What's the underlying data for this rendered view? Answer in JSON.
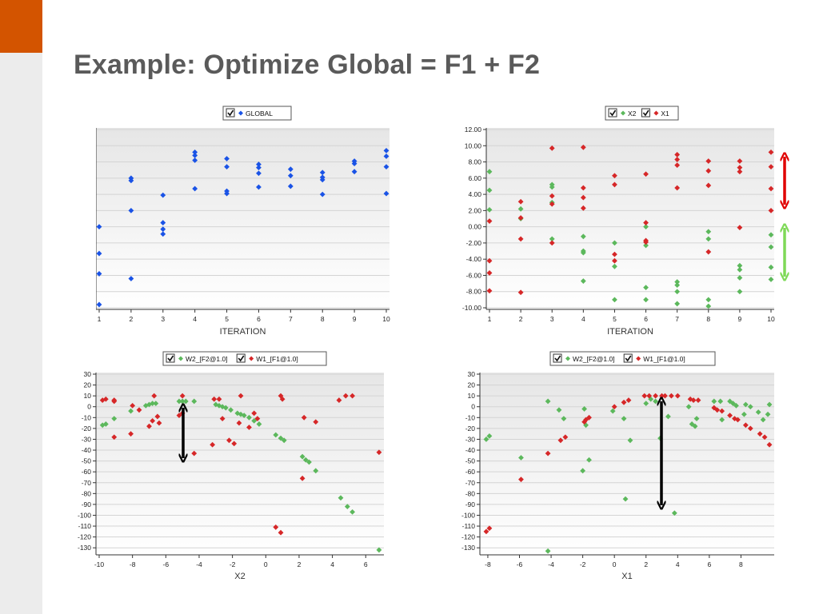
{
  "slide": {
    "title": "Example: Optimize Global = F1 + F2",
    "accent_color": "#d35400"
  },
  "chart_data": [
    {
      "type": "scatter",
      "xlabel": "ITERATION",
      "xlim": [
        1,
        10
      ],
      "ylim": [
        -180,
        40
      ],
      "xticks": [
        1,
        2,
        3,
        4,
        5,
        6,
        7,
        8,
        9,
        10
      ],
      "yticks": [
        -180,
        -160,
        -140,
        -120,
        -100,
        -80,
        -60,
        -40,
        -20,
        0,
        20,
        40
      ],
      "legend": "top",
      "series": [
        {
          "name": "GLOBAL",
          "color": "#1a53e6",
          "points": [
            [
              1,
              -80
            ],
            [
              1,
              -113
            ],
            [
              1,
              -138
            ],
            [
              1,
              -176
            ],
            [
              2,
              -20
            ],
            [
              2,
              -23
            ],
            [
              2,
              -60
            ],
            [
              2,
              -144
            ],
            [
              3,
              -41
            ],
            [
              3,
              -75
            ],
            [
              3,
              -83
            ],
            [
              3,
              -89
            ],
            [
              4,
              12
            ],
            [
              4,
              8
            ],
            [
              4,
              2
            ],
            [
              4,
              -33
            ],
            [
              5,
              4
            ],
            [
              5,
              -6
            ],
            [
              5,
              -36
            ],
            [
              5,
              -39
            ],
            [
              6,
              -3
            ],
            [
              6,
              -7
            ],
            [
              6,
              -14
            ],
            [
              6,
              -31
            ],
            [
              7,
              -9
            ],
            [
              7,
              -17
            ],
            [
              7,
              -30
            ],
            [
              8,
              -13
            ],
            [
              8,
              -19
            ],
            [
              8,
              -22
            ],
            [
              8,
              -40
            ],
            [
              9,
              1
            ],
            [
              9,
              -2
            ],
            [
              9,
              -12
            ],
            [
              10,
              14
            ],
            [
              10,
              7
            ],
            [
              10,
              -6
            ],
            [
              10,
              -39
            ]
          ]
        }
      ]
    },
    {
      "type": "scatter",
      "xlabel": "ITERATION",
      "xlim": [
        1,
        10
      ],
      "ylim": [
        -10,
        12
      ],
      "xticks": [
        1,
        2,
        3,
        4,
        5,
        6,
        7,
        8,
        9,
        10
      ],
      "yticks": [
        "-10.00",
        "-8.00",
        "-6.00",
        "-4.00",
        "-2.00",
        "0.00",
        "2.00",
        "4.00",
        "6.00",
        "8.00",
        "10.00",
        "12.00"
      ],
      "legend": "top",
      "series": [
        {
          "name": "X2",
          "color": "#5cb85c",
          "points": [
            [
              1,
              6.8
            ],
            [
              1,
              4.5
            ],
            [
              1,
              2.1
            ],
            [
              2,
              2.2
            ],
            [
              2,
              1.0
            ],
            [
              3,
              5.2
            ],
            [
              3,
              4.9
            ],
            [
              3,
              3.0
            ],
            [
              3,
              -1.5
            ],
            [
              4,
              -1.2
            ],
            [
              4,
              -3.0
            ],
            [
              4,
              -3.2
            ],
            [
              4,
              -6.7
            ],
            [
              5,
              -2.0
            ],
            [
              5,
              -4.9
            ],
            [
              5,
              -9.0
            ],
            [
              6,
              0.0
            ],
            [
              6,
              -2.3
            ],
            [
              6,
              -7.5
            ],
            [
              6,
              -9.0
            ],
            [
              7,
              -6.8
            ],
            [
              7,
              -7.2
            ],
            [
              7,
              -8.0
            ],
            [
              7,
              -9.5
            ],
            [
              8,
              -0.6
            ],
            [
              8,
              -1.5
            ],
            [
              8,
              -9.0
            ],
            [
              8,
              -9.8
            ],
            [
              9,
              -4.8
            ],
            [
              9,
              -5.3
            ],
            [
              9,
              -6.3
            ],
            [
              9,
              -8.0
            ],
            [
              10,
              -1.0
            ],
            [
              10,
              -2.5
            ],
            [
              10,
              -5.0
            ],
            [
              10,
              -6.5
            ]
          ]
        },
        {
          "name": "X1",
          "color": "#d62728",
          "points": [
            [
              1,
              0.7
            ],
            [
              1,
              -4.2
            ],
            [
              1,
              -5.7
            ],
            [
              1,
              -7.9
            ],
            [
              2,
              3.1
            ],
            [
              2,
              1.1
            ],
            [
              2,
              -1.5
            ],
            [
              2,
              -8.1
            ],
            [
              3,
              9.7
            ],
            [
              3,
              3.8
            ],
            [
              3,
              2.8
            ],
            [
              3,
              -2.0
            ],
            [
              4,
              9.8
            ],
            [
              4,
              4.8
            ],
            [
              4,
              3.6
            ],
            [
              4,
              2.3
            ],
            [
              5,
              6.3
            ],
            [
              5,
              5.2
            ],
            [
              5,
              -3.4
            ],
            [
              5,
              -4.2
            ],
            [
              6,
              6.5
            ],
            [
              6,
              0.5
            ],
            [
              6,
              -1.7
            ],
            [
              6,
              -1.9
            ],
            [
              7,
              8.9
            ],
            [
              7,
              8.3
            ],
            [
              7,
              7.6
            ],
            [
              7,
              4.8
            ],
            [
              8,
              8.1
            ],
            [
              8,
              6.9
            ],
            [
              8,
              5.1
            ],
            [
              8,
              -3.1
            ],
            [
              9,
              8.1
            ],
            [
              9,
              7.3
            ],
            [
              9,
              6.8
            ],
            [
              9,
              -0.1
            ],
            [
              10,
              9.2
            ],
            [
              10,
              7.4
            ],
            [
              10,
              4.7
            ],
            [
              10,
              2.0
            ]
          ]
        }
      ]
    },
    {
      "type": "scatter",
      "xlabel": "X2",
      "xlim": [
        -10,
        6.9
      ],
      "ylim": [
        -135,
        30
      ],
      "xticks": [
        -10,
        -8,
        -6,
        -4,
        -2,
        0,
        2,
        4,
        6
      ],
      "yticks": [
        -130,
        -120,
        -110,
        -100,
        -90,
        -80,
        -70,
        -60,
        -50,
        -40,
        -30,
        -20,
        -10,
        0,
        10,
        20,
        30
      ],
      "legend": "top",
      "series": [
        {
          "name": "W2_[F2@1.0]",
          "color": "#5cb85c",
          "points": [
            [
              -9.8,
              -17
            ],
            [
              -9.6,
              -16
            ],
            [
              -9.1,
              -11
            ],
            [
              -8.1,
              -4
            ],
            [
              -7.2,
              1
            ],
            [
              -7.0,
              2
            ],
            [
              -6.8,
              3
            ],
            [
              -6.6,
              3
            ],
            [
              -5.2,
              5
            ],
            [
              -5.0,
              5
            ],
            [
              -4.8,
              5
            ],
            [
              -4.3,
              5
            ],
            [
              -3.0,
              2
            ],
            [
              -2.8,
              1
            ],
            [
              -2.6,
              0
            ],
            [
              -2.4,
              -1
            ],
            [
              -2.1,
              -3
            ],
            [
              -1.7,
              -6
            ],
            [
              -1.5,
              -7
            ],
            [
              -1.3,
              -8
            ],
            [
              -1.0,
              -10
            ],
            [
              -0.7,
              -13
            ],
            [
              -0.4,
              -16
            ],
            [
              0.6,
              -26
            ],
            [
              0.9,
              -29
            ],
            [
              1.1,
              -31
            ],
            [
              2.2,
              -46
            ],
            [
              2.4,
              -49
            ],
            [
              2.6,
              -51
            ],
            [
              3.0,
              -59
            ],
            [
              4.5,
              -84
            ],
            [
              4.9,
              -92
            ],
            [
              5.2,
              -97
            ],
            [
              6.8,
              -132
            ]
          ]
        },
        {
          "name": "W1_[F1@1.0]",
          "color": "#d62728",
          "points": [
            [
              -9.8,
              6
            ],
            [
              -9.6,
              7
            ],
            [
              -9.1,
              6
            ],
            [
              -9.1,
              5
            ],
            [
              -9.1,
              -28
            ],
            [
              -8.1,
              -25
            ],
            [
              -8.0,
              1
            ],
            [
              -7.6,
              -3
            ],
            [
              -7.0,
              -18
            ],
            [
              -6.8,
              -13
            ],
            [
              -6.7,
              10
            ],
            [
              -6.5,
              -9
            ],
            [
              -6.4,
              -15
            ],
            [
              -5.2,
              -8
            ],
            [
              -5.0,
              -6
            ],
            [
              -5.0,
              10
            ],
            [
              -4.3,
              -43
            ],
            [
              -3.2,
              -35
            ],
            [
              -3.1,
              7
            ],
            [
              -2.8,
              7
            ],
            [
              -2.6,
              -11
            ],
            [
              -2.2,
              -31
            ],
            [
              -1.9,
              -34
            ],
            [
              -1.6,
              -15
            ],
            [
              -1.5,
              10
            ],
            [
              -1.0,
              -19
            ],
            [
              -0.7,
              -6
            ],
            [
              -0.5,
              -11
            ],
            [
              0.6,
              -111
            ],
            [
              0.9,
              -116
            ],
            [
              0.9,
              10
            ],
            [
              1.0,
              7
            ],
            [
              2.2,
              -66
            ],
            [
              2.3,
              -10
            ],
            [
              3.0,
              -14
            ],
            [
              4.4,
              6
            ],
            [
              4.8,
              10
            ],
            [
              5.2,
              10
            ],
            [
              6.8,
              -42
            ]
          ]
        }
      ]
    },
    {
      "type": "scatter",
      "xlabel": "X1",
      "xlim": [
        -8.3,
        9.9
      ],
      "ylim": [
        -135,
        30
      ],
      "xticks": [
        -8,
        -6,
        -4,
        -2,
        0,
        2,
        4,
        6,
        8
      ],
      "yticks": [
        -130,
        -120,
        -110,
        -100,
        -90,
        -80,
        -70,
        -60,
        -50,
        -40,
        -30,
        -20,
        -10,
        0,
        10,
        20,
        30
      ],
      "legend": "top",
      "series": [
        {
          "name": "W2_[F2@1.0]",
          "color": "#5cb85c",
          "points": [
            [
              -8.1,
              -30
            ],
            [
              -7.9,
              -27
            ],
            [
              -5.9,
              -47
            ],
            [
              -4.2,
              5
            ],
            [
              -4.2,
              -133
            ],
            [
              -3.5,
              -3
            ],
            [
              -3.2,
              -11
            ],
            [
              -2.0,
              -59
            ],
            [
              -1.9,
              -2
            ],
            [
              -1.8,
              -17
            ],
            [
              -1.6,
              -49
            ],
            [
              -0.1,
              -4
            ],
            [
              0.6,
              -11
            ],
            [
              0.7,
              -85
            ],
            [
              1.0,
              -31
            ],
            [
              2.0,
              3
            ],
            [
              2.3,
              7
            ],
            [
              2.6,
              5
            ],
            [
              2.9,
              -29
            ],
            [
              3.4,
              -9
            ],
            [
              3.8,
              -98
            ],
            [
              4.7,
              0
            ],
            [
              4.9,
              -16
            ],
            [
              5.1,
              -18
            ],
            [
              5.2,
              -11
            ],
            [
              6.3,
              5
            ],
            [
              6.7,
              5
            ],
            [
              6.8,
              -12
            ],
            [
              7.3,
              5
            ],
            [
              7.5,
              3
            ],
            [
              7.7,
              1
            ],
            [
              8.2,
              -7
            ],
            [
              8.3,
              2
            ],
            [
              8.6,
              0
            ],
            [
              9.1,
              -5
            ],
            [
              9.4,
              -12
            ],
            [
              9.7,
              -7
            ],
            [
              9.8,
              2
            ]
          ]
        },
        {
          "name": "W1_[F1@1.0]",
          "color": "#d62728",
          "points": [
            [
              -8.1,
              -115
            ],
            [
              -7.9,
              -112
            ],
            [
              -5.9,
              -67
            ],
            [
              -4.2,
              -43
            ],
            [
              -3.4,
              -31
            ],
            [
              -3.1,
              -28
            ],
            [
              -1.9,
              -14
            ],
            [
              -1.8,
              -12
            ],
            [
              -1.6,
              -10
            ],
            [
              0.0,
              0
            ],
            [
              0.6,
              4
            ],
            [
              0.9,
              6
            ],
            [
              1.9,
              10
            ],
            [
              2.2,
              10
            ],
            [
              2.6,
              10
            ],
            [
              3.0,
              10
            ],
            [
              3.2,
              10
            ],
            [
              3.6,
              10
            ],
            [
              4.0,
              10
            ],
            [
              4.8,
              7
            ],
            [
              5.0,
              6
            ],
            [
              5.3,
              6
            ],
            [
              6.3,
              -1
            ],
            [
              6.5,
              -3
            ],
            [
              6.8,
              -4
            ],
            [
              7.3,
              -8
            ],
            [
              7.6,
              -11
            ],
            [
              7.8,
              -12
            ],
            [
              8.3,
              -17
            ],
            [
              8.6,
              -20
            ],
            [
              9.2,
              -25
            ],
            [
              9.5,
              -28
            ],
            [
              9.8,
              -35
            ]
          ]
        }
      ]
    }
  ]
}
